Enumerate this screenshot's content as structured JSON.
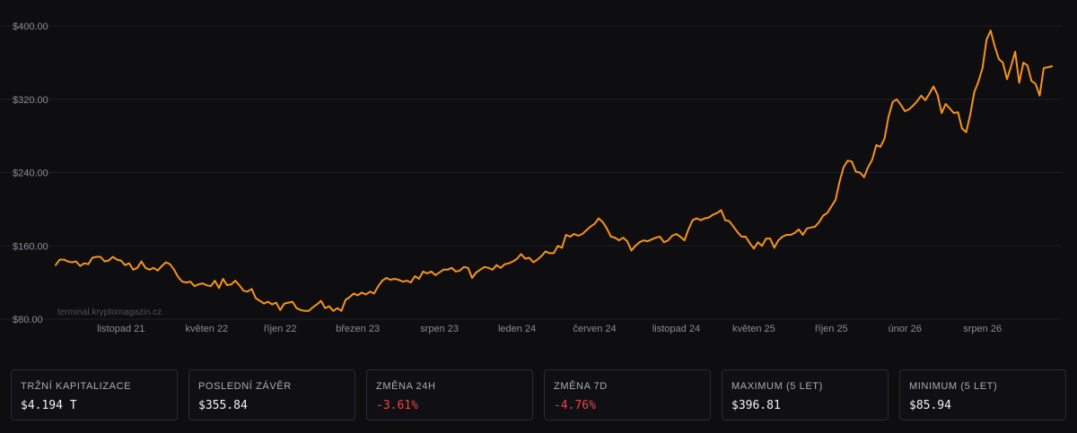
{
  "watermark": "terminal.kryptomagazin.cz",
  "colors": {
    "line": "#f7931a",
    "negative": "#ef4444",
    "background": "#0e0e11"
  },
  "chart_data": {
    "type": "line",
    "title": "",
    "xlabel": "",
    "ylabel": "",
    "ylim": [
      80,
      400
    ],
    "grid": true,
    "y_ticks": [
      "$80.00",
      "$160.00",
      "$240.00",
      "$320.00",
      "$400.00"
    ],
    "y_tick_values": [
      80,
      160,
      240,
      320,
      400
    ],
    "x_ticks": [
      "listopad 21",
      "květen 22",
      "říjen 22",
      "březen 23",
      "srpen 23",
      "leden 24",
      "červen 24",
      "listopad 24",
      "květen 25",
      "říjen 25",
      "únor 26",
      "srpen 26"
    ],
    "x_tick_index": [
      16,
      37,
      55,
      74,
      94,
      113,
      132,
      152,
      171,
      190,
      208,
      227
    ],
    "series": [
      {
        "values": [
          139,
          145,
          145,
          143,
          142,
          143,
          138,
          141,
          140,
          147,
          148,
          148,
          143,
          144,
          148,
          145,
          144,
          139,
          141,
          134,
          136,
          143,
          136,
          134,
          136,
          133,
          138,
          142,
          140,
          134,
          126,
          121,
          120,
          121,
          116,
          118,
          119,
          117,
          116,
          122,
          114,
          124,
          117,
          118,
          122,
          117,
          111,
          110,
          113,
          103,
          100,
          97,
          99,
          96,
          98,
          90,
          97,
          98,
          99,
          92,
          90,
          89,
          89,
          93,
          96,
          100,
          92,
          94,
          89,
          92,
          89,
          101,
          104,
          108,
          106,
          109,
          107,
          110,
          108,
          116,
          122,
          125,
          123,
          124,
          123,
          121,
          122,
          120,
          127,
          124,
          132,
          130,
          132,
          128,
          131,
          134,
          134,
          136,
          132,
          133,
          137,
          136,
          125,
          131,
          134,
          137,
          136,
          134,
          139,
          136,
          140,
          141,
          143,
          146,
          151,
          146,
          147,
          142,
          145,
          149,
          154,
          152,
          152,
          160,
          158,
          172,
          170,
          173,
          171,
          173,
          177,
          181,
          184,
          190,
          186,
          179,
          170,
          169,
          166,
          169,
          165,
          155,
          160,
          164,
          166,
          165,
          167,
          169,
          170,
          164,
          166,
          171,
          173,
          170,
          166,
          178,
          188,
          190,
          188,
          190,
          191,
          194,
          196,
          199,
          188,
          187,
          181,
          175,
          170,
          170,
          163,
          157,
          164,
          160,
          168,
          168,
          158,
          166,
          170,
          172,
          172,
          174,
          178,
          172,
          179,
          180,
          181,
          186,
          193,
          196,
          203,
          210,
          230,
          246,
          253,
          252,
          241,
          240,
          235,
          246,
          254,
          270,
          268,
          277,
          301,
          317,
          320,
          314,
          307,
          309,
          313,
          318,
          324,
          319,
          326,
          334,
          325,
          305,
          315,
          310,
          305,
          306,
          288,
          284,
          303,
          328,
          339,
          354,
          385,
          395,
          378,
          364,
          360,
          342,
          356,
          372,
          338,
          360,
          357,
          340,
          337,
          324,
          354,
          355,
          356
        ]
      }
    ]
  },
  "stats": [
    {
      "label": "Tržní kapitalizace",
      "value": "$4.194 T"
    },
    {
      "label": "Poslední závěr",
      "value": "$355.84"
    },
    {
      "label": "Změna 24h",
      "value": "-3.61%"
    },
    {
      "label": "Změna 7D",
      "value": "-4.76%"
    },
    {
      "label": "Maximum (5 let)",
      "value": "$396.81"
    },
    {
      "label": "Minimum (5 let)",
      "value": "$85.94"
    }
  ]
}
